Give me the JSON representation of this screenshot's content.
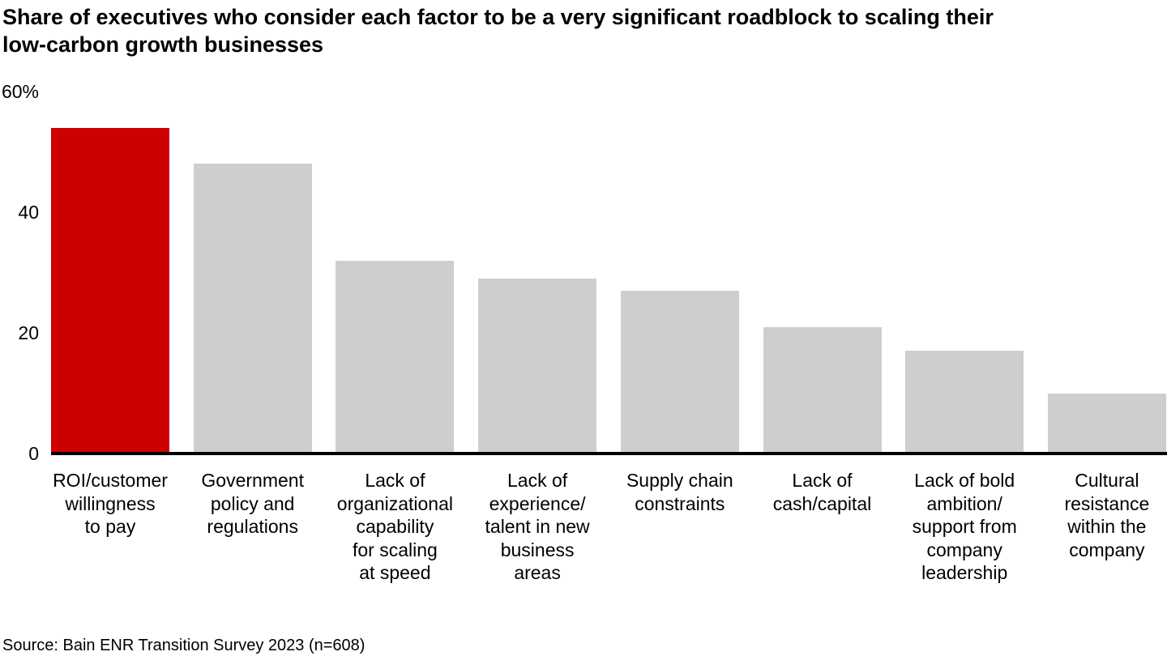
{
  "header": {
    "title": "Share of executives who consider each factor to be a very significant roadblock to scaling their\nlow-carbon growth businesses"
  },
  "chart_data": {
    "type": "bar",
    "title": "Share of executives who consider each factor to be a very significant roadblock to scaling their low-carbon growth businesses",
    "unit": "%",
    "categories": [
      "ROI/customer\nwillingness\nto pay",
      "Government\npolicy and\nregulations",
      "Lack of\norganizational\ncapability\nfor scaling\nat speed",
      "Lack of\nexperience/\ntalent in new\nbusiness\nareas",
      "Supply chain\nconstraints",
      "Lack of\ncash/capital",
      "Lack of bold\nambition/\nsupport from\ncompany\nleadership",
      "Cultural\nresistance\nwithin the\ncompany"
    ],
    "values": [
      54,
      48,
      32,
      29,
      27,
      21,
      17,
      10
    ],
    "xlabel": "",
    "ylabel": "",
    "ylim": [
      0,
      60
    ],
    "y_ticks": [
      {
        "label": "60%",
        "value": 60
      },
      {
        "label": "40",
        "value": 40
      },
      {
        "label": "20",
        "value": 20
      },
      {
        "label": "0",
        "value": 0
      }
    ],
    "grid": false,
    "legend": false,
    "highlight_index": 0,
    "highlight_color": "#cc0000",
    "bar_color": "#cecece",
    "axis_color": "#000000"
  },
  "footer": {
    "source": "Source: Bain ENR Transition Survey 2023 (n=608)"
  }
}
